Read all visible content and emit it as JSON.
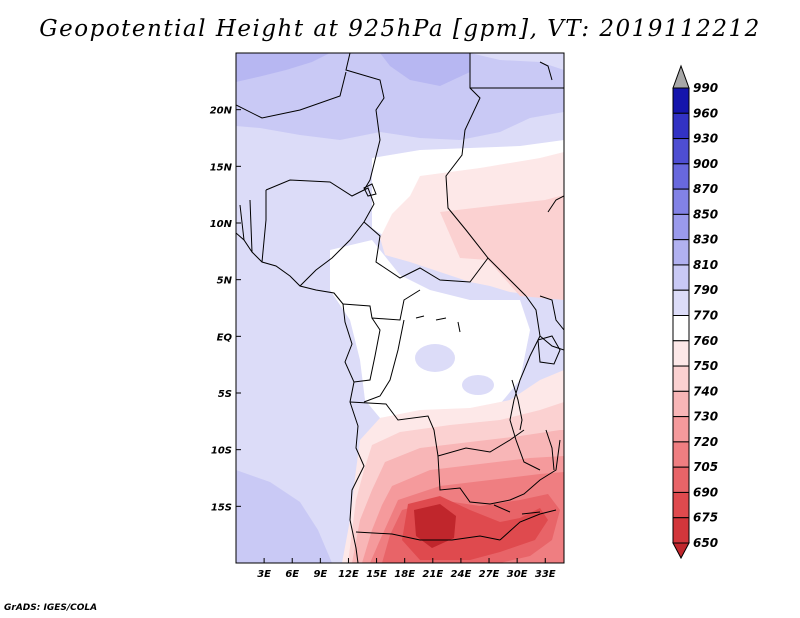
{
  "title": "Geopotential Height at 925hPa [gpm], VT: 2019112212",
  "credit": "GrADS: IGES/COLA",
  "chart_data": {
    "type": "heatmap",
    "variable": "Geopotential Height",
    "level": "925hPa",
    "units": "gpm",
    "valid_time": "2019112212",
    "lon_range": [
      0,
      35
    ],
    "lat_range": [
      -20,
      25
    ],
    "x_ticks": [
      "3E",
      "6E",
      "9E",
      "12E",
      "15E",
      "18E",
      "21E",
      "24E",
      "27E",
      "30E",
      "33E"
    ],
    "x_tick_values": [
      3,
      6,
      9,
      12,
      15,
      18,
      21,
      24,
      27,
      30,
      33
    ],
    "y_ticks": [
      "20N",
      "15N",
      "10N",
      "5N",
      "EQ",
      "5S",
      "10S",
      "15S"
    ],
    "y_tick_values": [
      20,
      15,
      10,
      5,
      0,
      -5,
      -10,
      -15
    ],
    "colorbar": {
      "levels": [
        650,
        675,
        690,
        705,
        720,
        730,
        740,
        750,
        760,
        770,
        790,
        810,
        830,
        850,
        870,
        900,
        930,
        960,
        990
      ],
      "colors": [
        "#c0262c",
        "#d2363b",
        "#df4a4e",
        "#e86468",
        "#ef7e81",
        "#f59a9c",
        "#f8b6b7",
        "#fbd1d1",
        "#fde8e8",
        "#ffffff",
        "#dcdcf8",
        "#c9c9f5",
        "#b1b1f0",
        "#9a9aec",
        "#8282e6",
        "#6868dd",
        "#4e4ed2",
        "#3232c4",
        "#1515ac",
        "#0000a0"
      ]
    },
    "icons": {
      "cb_top": "triangle-up-gray",
      "cb_bottom": "triangle-down-red"
    }
  }
}
